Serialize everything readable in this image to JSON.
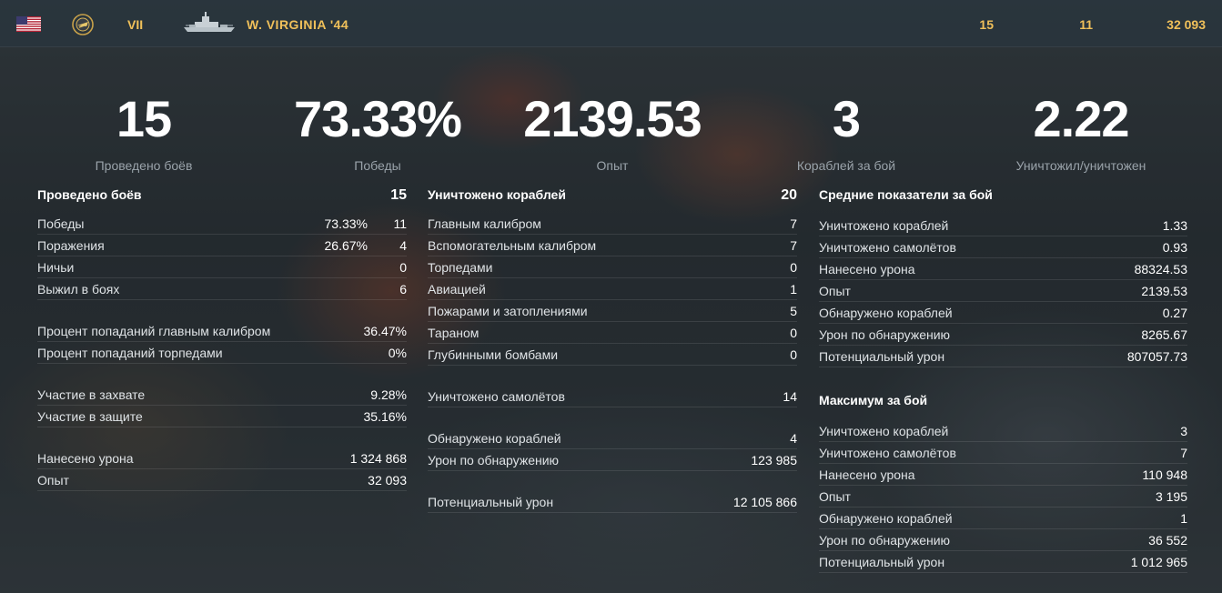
{
  "header": {
    "flag_icon": "us-flag-icon",
    "nation_icon": "usa-emblem-icon",
    "tier": "VII",
    "ship_icon": "battleship-silhouette-icon",
    "ship_name": "W. VIRGINIA '44",
    "battles": "15",
    "wins": "11",
    "exp": "32 093",
    "accent_color": "#f0c05a"
  },
  "summary": [
    {
      "value": "15",
      "label": "Проведено боёв"
    },
    {
      "value": "73.33%",
      "label": "Победы"
    },
    {
      "value": "2139.53",
      "label": "Опыт"
    },
    {
      "value": "3",
      "label": "Кораблей за бой"
    },
    {
      "value": "2.22",
      "label": "Уничтожил/уничтожен"
    }
  ],
  "col1": {
    "head": {
      "label": "Проведено боёв",
      "value": "15"
    },
    "rows": [
      {
        "label": "Победы",
        "pct": "73.33%",
        "value": "11"
      },
      {
        "label": "Поражения",
        "pct": "26.67%",
        "value": "4"
      },
      {
        "label": "Ничьи",
        "value": "0"
      },
      {
        "label": "Выжил в боях",
        "value": "6"
      }
    ],
    "accuracy": [
      {
        "label": "Процент попаданий главным калибром",
        "value": "36.47%"
      },
      {
        "label": "Процент попаданий торпедами",
        "value": "0%"
      }
    ],
    "capture": [
      {
        "label": "Участие в захвате",
        "value": "9.28%"
      },
      {
        "label": "Участие в защите",
        "value": "35.16%"
      }
    ],
    "totals": [
      {
        "label": "Нанесено урона",
        "value": "1 324 868"
      },
      {
        "label": "Опыт",
        "value": "32 093"
      }
    ]
  },
  "col2": {
    "head": {
      "label": "Уничтожено кораблей",
      "value": "20"
    },
    "rows": [
      {
        "label": "Главным калибром",
        "value": "7"
      },
      {
        "label": "Вспомогательным калибром",
        "value": "7"
      },
      {
        "label": "Торпедами",
        "value": "0"
      },
      {
        "label": "Авиацией",
        "value": "1"
      },
      {
        "label": "Пожарами и затоплениями",
        "value": "5"
      },
      {
        "label": "Тараном",
        "value": "0"
      },
      {
        "label": "Глубинными бомбами",
        "value": "0"
      }
    ],
    "planes": [
      {
        "label": "Уничтожено самолётов",
        "value": "14"
      }
    ],
    "spotting": [
      {
        "label": "Обнаружено кораблей",
        "value": "4"
      },
      {
        "label": "Урон по обнаружению",
        "value": "123 985"
      }
    ],
    "potential": [
      {
        "label": "Потенциальный урон",
        "value": "12 105 866"
      }
    ]
  },
  "col3": {
    "avg_title": "Средние показатели за бой",
    "avg": [
      {
        "label": "Уничтожено кораблей",
        "value": "1.33"
      },
      {
        "label": "Уничтожено самолётов",
        "value": "0.93"
      },
      {
        "label": "Нанесено урона",
        "value": "88324.53"
      },
      {
        "label": "Опыт",
        "value": "2139.53"
      },
      {
        "label": "Обнаружено кораблей",
        "value": "0.27"
      },
      {
        "label": "Урон по обнаружению",
        "value": "8265.67"
      },
      {
        "label": "Потенциальный урон",
        "value": "807057.73"
      }
    ],
    "max_title": "Максимум за бой",
    "max": [
      {
        "label": "Уничтожено кораблей",
        "value": "3"
      },
      {
        "label": "Уничтожено самолётов",
        "value": "7"
      },
      {
        "label": "Нанесено урона",
        "value": "110 948"
      },
      {
        "label": "Опыт",
        "value": "3 195"
      },
      {
        "label": "Обнаружено кораблей",
        "value": "1"
      },
      {
        "label": "Урон по обнаружению",
        "value": "36 552"
      },
      {
        "label": "Потенциальный урон",
        "value": "1 012 965"
      }
    ]
  }
}
